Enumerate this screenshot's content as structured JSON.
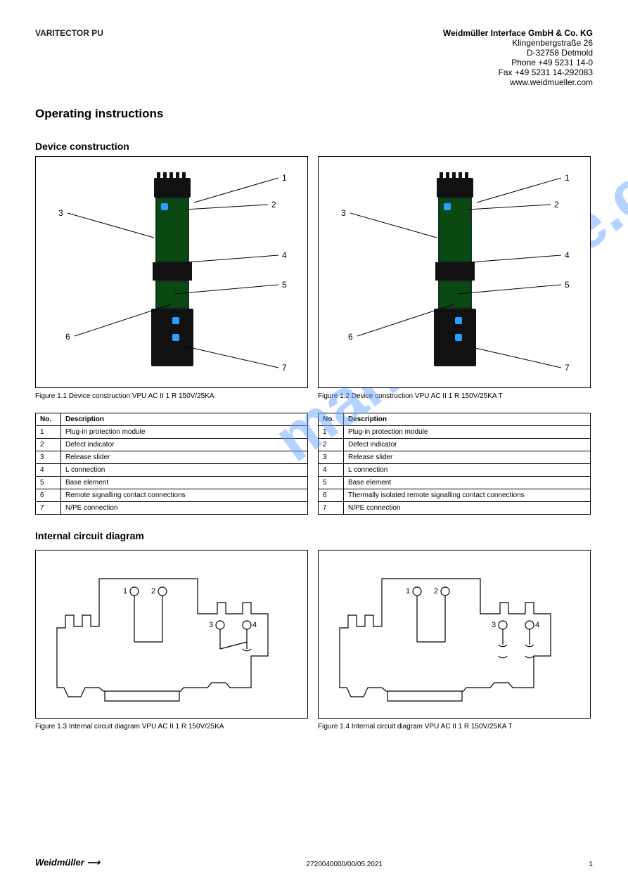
{
  "header": {
    "brand": "VARITECTOR PU",
    "company": "Weidmüller Interface GmbH & Co. KG",
    "address1": "Klingenbergstraße 26",
    "address2": "D-32758 Detmold",
    "phone": "Phone  +49 5231 14-0",
    "fax": "Fax      +49 5231 14-292083",
    "web": "www.weidmueller.com"
  },
  "title": "Operating instructions",
  "device_section_label": "Device construction",
  "fig1": {
    "caption": "Figure 1.1  Device construction VPU AC II 1 R 150V/25KA",
    "labels": {
      "1": "1",
      "2": "2",
      "3": "3",
      "4": "4",
      "5": "5",
      "6": "6",
      "7": "7"
    }
  },
  "fig2": {
    "caption": "Figure 1.2  Device construction VPU AC II 1 R 150V/25KA T",
    "labels": {
      "1": "1",
      "2": "2",
      "3": "3",
      "4": "4",
      "5": "5",
      "6": "6",
      "7": "7"
    }
  },
  "table1": {
    "headers": [
      "No.",
      "Description"
    ],
    "rows": [
      [
        "1",
        "Plug-in protection module"
      ],
      [
        "2",
        "Defect indicator"
      ],
      [
        "3",
        "Release slider"
      ],
      [
        "4",
        "L connection"
      ],
      [
        "5",
        "Base element"
      ],
      [
        "6",
        "Remote signalling contact connections"
      ],
      [
        "7",
        "N/PE connection"
      ]
    ]
  },
  "table2": {
    "headers": [
      "No.",
      "Description"
    ],
    "rows": [
      [
        "1",
        "Plug-in protection module"
      ],
      [
        "2",
        "Defect indicator"
      ],
      [
        "3",
        "Release slider"
      ],
      [
        "4",
        "L connection"
      ],
      [
        "5",
        "Base element"
      ],
      [
        "6",
        "Thermally isolated remote signalling contact connections"
      ],
      [
        "7",
        "N/PE connection"
      ]
    ]
  },
  "schematics_title": "Internal circuit diagram",
  "sch1_caption": "Figure 1.3  Internal circuit diagram VPU AC II 1 R 150V/25KA",
  "sch2_caption": "Figure 1.4  Internal circuit diagram VPU AC II 1 R 150V/25KA T",
  "sch_nodes": {
    "1": "1",
    "2": "2",
    "3": "3",
    "4": "4"
  },
  "footer": {
    "logo": "Weidmüller ⟶",
    "doc": "2720040000/00/05.2021",
    "page": "1"
  },
  "colors": {
    "watermark": "#6aa6ff",
    "watermark_opacity": 0.55,
    "led": "#27a0ff",
    "pcb": "#0a4a12",
    "housing": "#111111"
  }
}
